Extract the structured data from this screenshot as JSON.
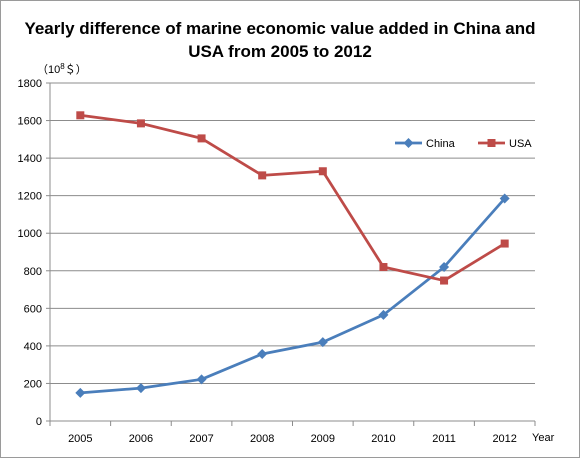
{
  "chart_data": {
    "type": "line",
    "title_line1": "Yearly difference of marine economic value added in China and",
    "title_line2": "USA from 2005 to 2012",
    "ylabel_prefix": "（10",
    "ylabel_sup": "8",
    "ylabel_suffix": "＄）",
    "xlabel": "Year",
    "categories": [
      "2005",
      "2006",
      "2007",
      "2008",
      "2009",
      "2010",
      "2011",
      "2012"
    ],
    "ylim": [
      0,
      1800
    ],
    "yticks": [
      0,
      200,
      400,
      600,
      800,
      1000,
      1200,
      1400,
      1600,
      1800
    ],
    "grid": true,
    "legend_position": "right",
    "series": [
      {
        "name": "China",
        "color": "#4a7ebb",
        "marker": "diamond",
        "values": [
          150,
          175,
          222,
          357,
          420,
          565,
          820,
          1185
        ]
      },
      {
        "name": "USA",
        "color": "#be4b48",
        "marker": "square",
        "values": [
          1628,
          1585,
          1505,
          1308,
          1330,
          820,
          748,
          945
        ]
      }
    ]
  }
}
